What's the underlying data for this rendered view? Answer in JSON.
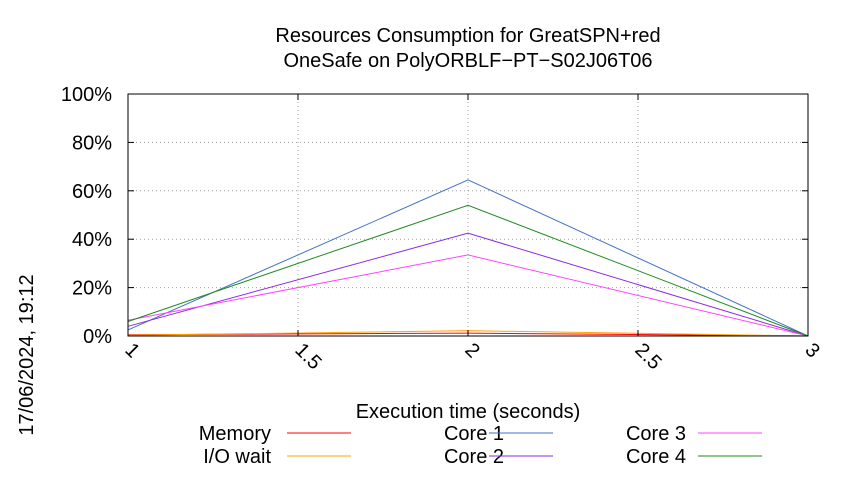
{
  "chart_data": {
    "type": "line",
    "title": [
      "Resources Consumption for GreatSPN+red",
      "OneSafe on PolyORBLF−PT−S02J06T06"
    ],
    "xlabel": "Execution time (seconds)",
    "ylabel": "",
    "side_label": "17/06/2024, 19:12",
    "x_ticks": [
      "1",
      "1.5",
      "2",
      "2.5",
      "3"
    ],
    "x_tick_values": [
      1,
      1.5,
      2,
      2.5,
      3
    ],
    "y_ticks": [
      "0%",
      "20%",
      "40%",
      "60%",
      "80%",
      "100%"
    ],
    "y_tick_values": [
      0,
      20,
      40,
      60,
      80,
      100
    ],
    "xlim": [
      1,
      3
    ],
    "ylim": [
      0,
      100
    ],
    "grid": true,
    "legend_position": "bottom",
    "x": [
      1,
      2,
      3
    ],
    "series": [
      {
        "name": "Memory",
        "color": "#ff0000",
        "values": [
          0.5,
          1.2,
          0
        ]
      },
      {
        "name": "I/O wait",
        "color": "#ffa500",
        "values": [
          0.3,
          2.2,
          0
        ]
      },
      {
        "name": "Core 1",
        "color": "#4472c4",
        "values": [
          2.5,
          64.5,
          0
        ]
      },
      {
        "name": "Core 2",
        "color": "#8a2be2",
        "values": [
          4,
          42.5,
          0
        ]
      },
      {
        "name": "Core 3",
        "color": "#ff44ff",
        "values": [
          6.5,
          33.5,
          0
        ]
      },
      {
        "name": "Core 4",
        "color": "#228b22",
        "values": [
          6,
          54,
          0
        ]
      }
    ]
  }
}
